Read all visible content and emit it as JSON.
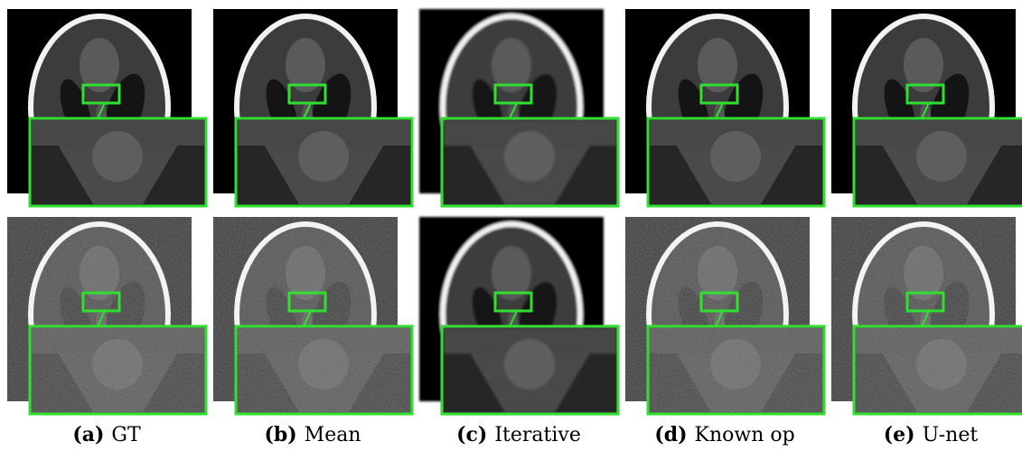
{
  "captions": [
    {
      "label": "(a)",
      "text": "GT"
    },
    {
      "label": "(b)",
      "text": "Mean"
    },
    {
      "label": "(c)",
      "text": "Iterative"
    },
    {
      "label": "(d)",
      "text": "Known op"
    },
    {
      "label": "(e)",
      "text": "U-net"
    }
  ]
}
